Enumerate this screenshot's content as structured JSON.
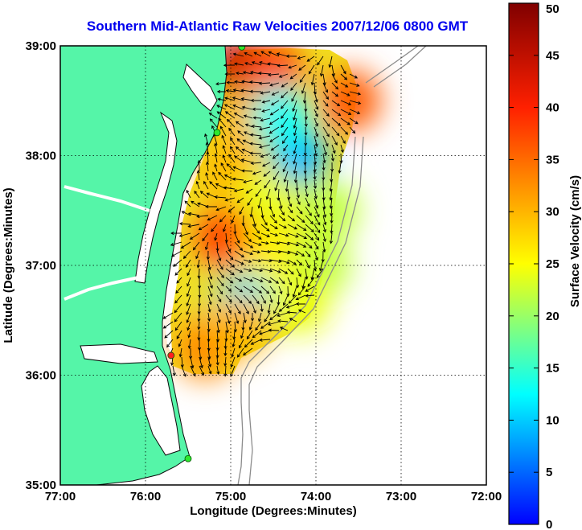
{
  "title": "Southern Mid-Atlantic Raw Velocities 2007/12/06 0800 GMT",
  "xlabel": "Longitude (Degrees:Minutes)",
  "ylabel": "Latitude (Degrees:Minutes)",
  "x_ticks": [
    {
      "value": -77,
      "label": "77:00"
    },
    {
      "value": -76,
      "label": "76:00"
    },
    {
      "value": -75,
      "label": "75:00"
    },
    {
      "value": -74,
      "label": "74:00"
    },
    {
      "value": -73,
      "label": "73:00"
    },
    {
      "value": -72,
      "label": "72:00"
    }
  ],
  "y_ticks": [
    {
      "value": 35,
      "label": "35:00"
    },
    {
      "value": 36,
      "label": "36:00"
    },
    {
      "value": 37,
      "label": "37:00"
    },
    {
      "value": 38,
      "label": "38:00"
    },
    {
      "value": 39,
      "label": "39:00"
    }
  ],
  "colorbar": {
    "label": "Surface Velocity (cm/s)",
    "min": 0,
    "max": 50,
    "ticks": [
      0,
      5,
      10,
      15,
      20,
      25,
      30,
      35,
      40,
      45,
      50
    ]
  },
  "colors": {
    "land": "#55f5a8",
    "water": "#ffffff",
    "title": "#0000ee",
    "station_active": "#2ee82e",
    "station_inactive": "#ff2020",
    "bathymetry": "#8c8c8c"
  },
  "chart_data": {
    "type": "heatmap",
    "xlim": [
      -77,
      -72
    ],
    "ylim": [
      35,
      39
    ],
    "grid": true,
    "units": "cm/s",
    "speed_cells": [
      {
        "lon": -74.9,
        "lat": 38.8,
        "speed": 45
      },
      {
        "lon": -74.5,
        "lat": 38.75,
        "speed": 38
      },
      {
        "lon": -73.6,
        "lat": 38.5,
        "speed": 36
      },
      {
        "lon": -74.8,
        "lat": 38.35,
        "speed": 30
      },
      {
        "lon": -74.2,
        "lat": 38.0,
        "speed": 9
      },
      {
        "lon": -74.4,
        "lat": 38.35,
        "speed": 13
      },
      {
        "lon": -75.0,
        "lat": 37.85,
        "speed": 30
      },
      {
        "lon": -74.6,
        "lat": 37.6,
        "speed": 24
      },
      {
        "lon": -73.85,
        "lat": 37.5,
        "speed": 22
      },
      {
        "lon": -75.05,
        "lat": 37.25,
        "speed": 38
      },
      {
        "lon": -74.5,
        "lat": 37.1,
        "speed": 26
      },
      {
        "lon": -73.95,
        "lat": 37.0,
        "speed": 22
      },
      {
        "lon": -74.85,
        "lat": 36.65,
        "speed": 11
      },
      {
        "lon": -74.2,
        "lat": 36.65,
        "speed": 24
      },
      {
        "lon": -75.3,
        "lat": 36.25,
        "speed": 33
      },
      {
        "lon": -74.9,
        "lat": 36.45,
        "speed": 30
      }
    ],
    "stations": [
      {
        "lon": -74.87,
        "lat": 38.99,
        "status": "active"
      },
      {
        "lon": -75.16,
        "lat": 38.21,
        "status": "active"
      },
      {
        "lon": -75.7,
        "lat": 36.18,
        "status": "inactive"
      },
      {
        "lon": -75.5,
        "lat": 35.24,
        "status": "active"
      }
    ]
  }
}
